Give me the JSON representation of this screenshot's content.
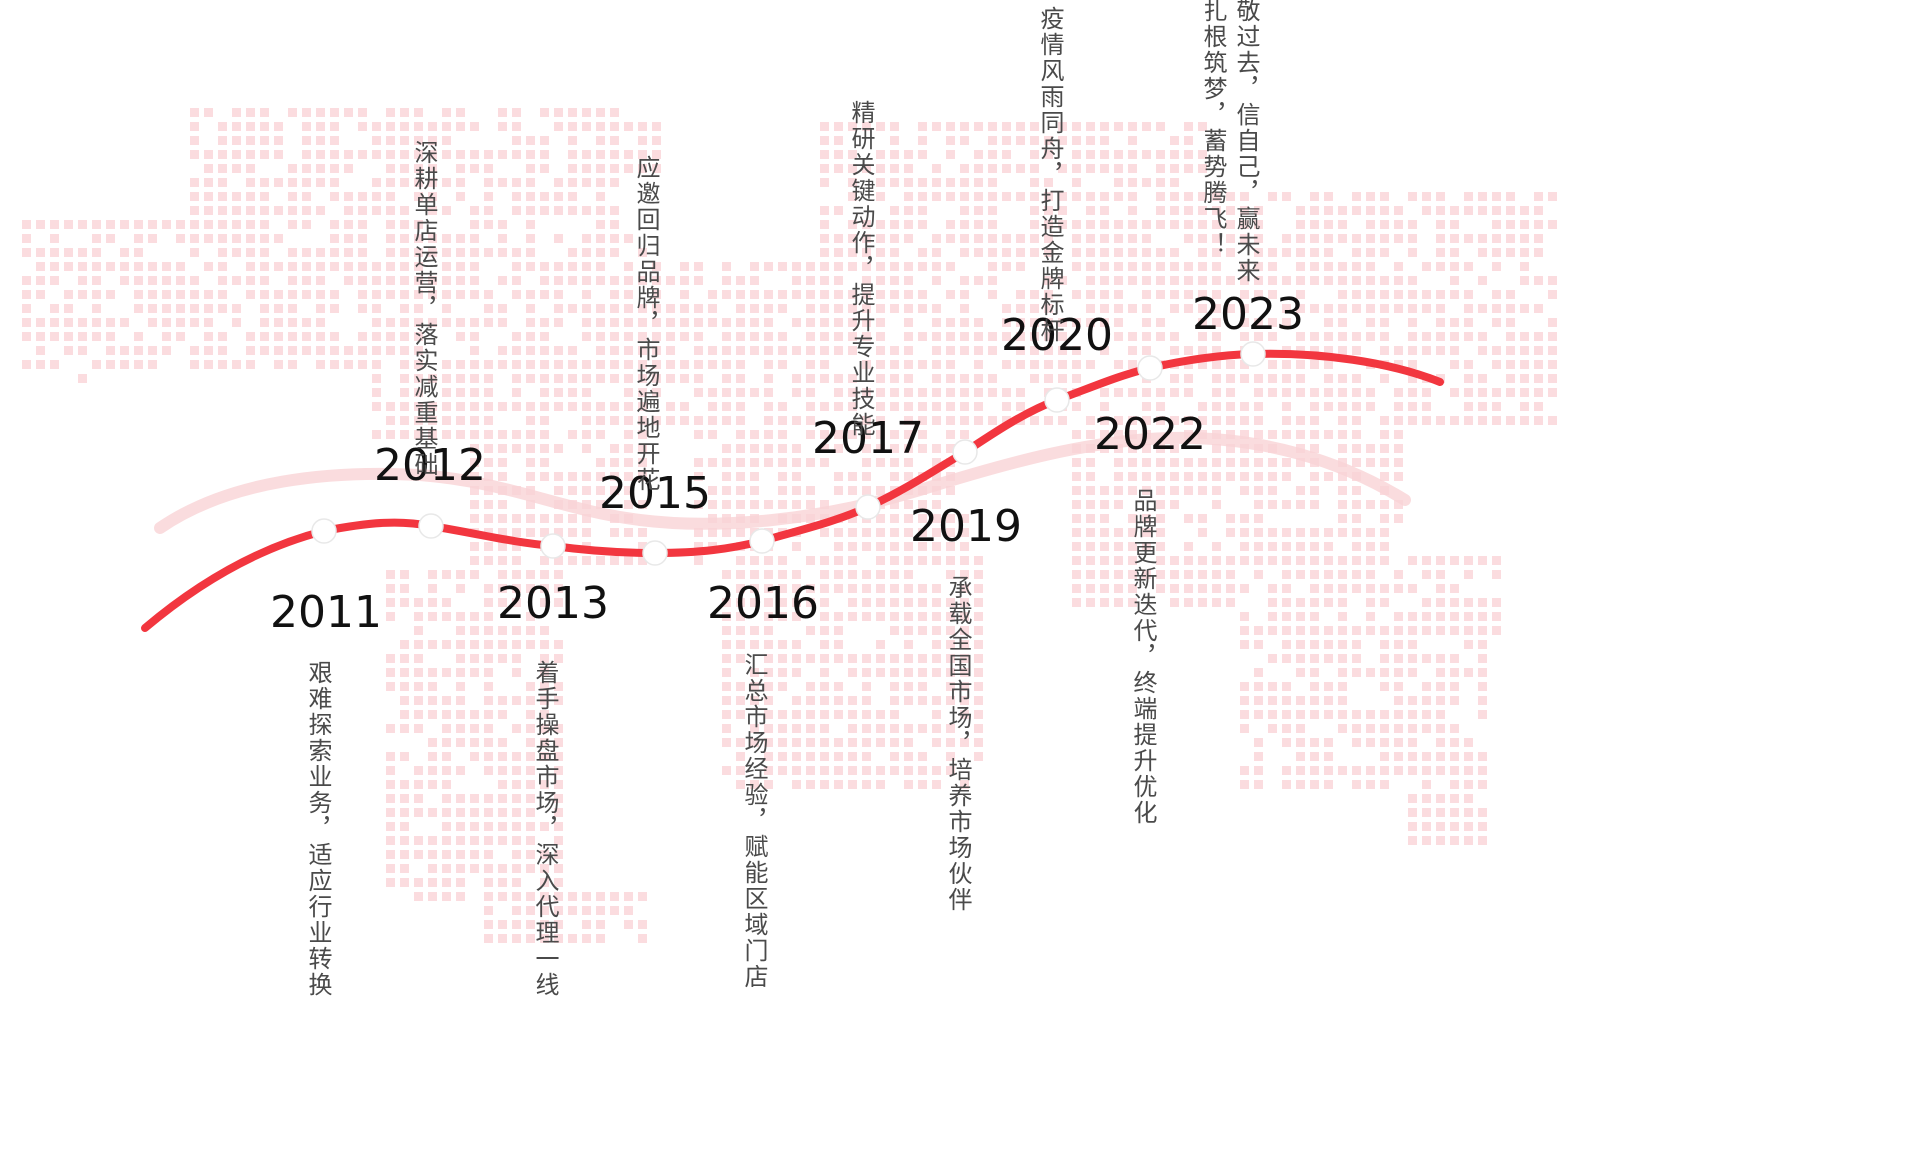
{
  "theme": {
    "accent": "#f2363f",
    "ghost_curve": "#f9d3d6",
    "map_dot": "#fbdcdf",
    "node_fill": "#ffffff",
    "year_color": "#111111",
    "text_color": "#4a4a4a"
  },
  "milestones": [
    {
      "year": "2011",
      "text": "艰难探索业务，适应行业转换"
    },
    {
      "year": "2012",
      "text": "深耕单店运营，落实减重基础"
    },
    {
      "year": "2013",
      "text": "着手操盘市场，深入代理一线"
    },
    {
      "year": "2015",
      "text": "应邀回归品牌，市场遍地开花"
    },
    {
      "year": "2016",
      "text": "汇总市场经验，赋能区域门店"
    },
    {
      "year": "2017",
      "text": "精研关键动作，提升专业技能"
    },
    {
      "year": "2019",
      "text": "承载全国市场，培养市场伙伴"
    },
    {
      "year": "2020",
      "text": "疫情风雨同舟，打造金牌标杆"
    },
    {
      "year": "2022",
      "text": "品牌更新迭代，终端提升优化"
    },
    {
      "year": "2023",
      "text": "敬过去，信自己，赢未来"
    }
  ],
  "extra_text": {
    "text": "扎根筑梦，蓄势腾飞！"
  }
}
